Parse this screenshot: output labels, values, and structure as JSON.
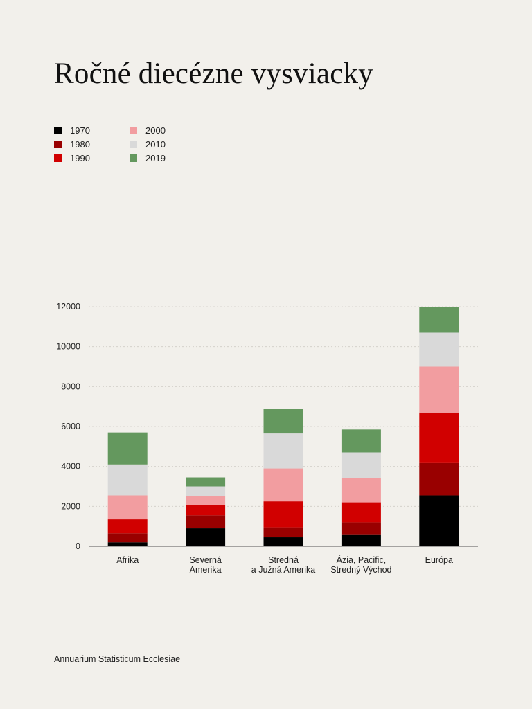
{
  "chart_data": {
    "type": "bar",
    "stacked": true,
    "title": "Ročné diecézne vysviacky",
    "categories": [
      "Afrika",
      "Severná Amerika",
      "Stredná a Južná Amerika",
      "Ázia, Pacific, Stredný Východ",
      "Európa"
    ],
    "category_lines": [
      [
        "Afrika"
      ],
      [
        "Severná",
        "Amerika"
      ],
      [
        "Stredná",
        "a Južná Amerika"
      ],
      [
        "Ázia, Pacific,",
        "Stredný Východ"
      ],
      [
        "Európa"
      ]
    ],
    "series": [
      {
        "name": "1970",
        "color": "#000000",
        "values": [
          200,
          900,
          450,
          600,
          2550
        ]
      },
      {
        "name": "1980",
        "color": "#990000",
        "values": [
          450,
          650,
          500,
          600,
          1650
        ]
      },
      {
        "name": "1990",
        "color": "#d10000",
        "values": [
          700,
          500,
          1300,
          1000,
          2500
        ]
      },
      {
        "name": "2000",
        "color": "#f29da0",
        "values": [
          1200,
          450,
          1650,
          1200,
          2300
        ]
      },
      {
        "name": "2010",
        "color": "#d9d9d9",
        "values": [
          1550,
          500,
          1750,
          1300,
          1700
        ]
      },
      {
        "name": "2019",
        "color": "#64985e",
        "values": [
          1600,
          450,
          1250,
          1150,
          1300
        ]
      }
    ],
    "yticks": [
      0,
      2000,
      4000,
      6000,
      8000,
      10000,
      12000
    ],
    "ylim": [
      0,
      12000
    ],
    "grid": true,
    "legend_position": "top-left",
    "xlabel": "",
    "ylabel": ""
  },
  "source": "Annuarium Statisticum Ecclesiae"
}
